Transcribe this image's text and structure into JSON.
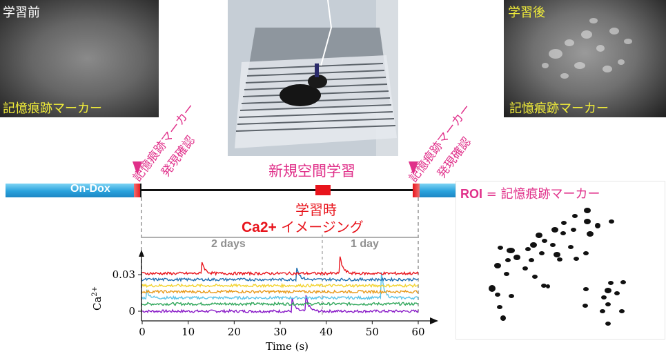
{
  "before_image": {
    "corner_label": "学習前",
    "marker_label": "記憶痕跡マーカー"
  },
  "after_image": {
    "corner_label": "学習後",
    "marker_label": "記憶痕跡マーカー"
  },
  "left_confirm": {
    "line1": "記憶痕跡マーカー",
    "line2": "発現確認"
  },
  "right_confirm": {
    "line1": "記憶痕跡マーカー",
    "line2": "発現確認"
  },
  "timeline": {
    "on_dox": "On-Dox",
    "new_space_learning": "新規空間学習",
    "learning_time": "学習時",
    "imaging_ca": "Ca2+",
    "imaging_rest": " イメージング",
    "days_before": "2 days",
    "days_after": "1 day"
  },
  "roi_panel": {
    "roi": "ROI",
    "equals": " = ",
    "marker": "記憶痕跡マーカー"
  },
  "colors": {
    "magenta": "#e0308a",
    "red": "#e8141c",
    "yellow": "#f2ee3a",
    "blue": "#2aa2dc",
    "trace_red": "#e8141c",
    "trace_blue": "#1f6fb2",
    "trace_yellow": "#f2d22c",
    "trace_orange": "#e89a1c",
    "trace_cyan": "#5cc4e8",
    "trace_green": "#2fa65a",
    "trace_purple": "#8a1cc8"
  },
  "chart_data": {
    "type": "line",
    "xlabel": "Time (s)",
    "ylabel": "Ca2+",
    "xlim": [
      0,
      60
    ],
    "xticks": [
      "0",
      "10",
      "20",
      "30",
      "40",
      "50",
      "60"
    ],
    "yticks": [
      "0",
      "0.03"
    ],
    "series": [
      {
        "color": "#8a1cc8",
        "offset": 0.0,
        "peaks": [
          [
            32.5,
            0.012
          ],
          [
            35.5,
            0.015
          ]
        ]
      },
      {
        "color": "#2fa65a",
        "offset": 0.006,
        "peaks": []
      },
      {
        "color": "#5cc4e8",
        "offset": 0.011,
        "peaks": [
          [
            1.0,
            0.006
          ],
          [
            52.0,
            0.02
          ]
        ]
      },
      {
        "color": "#e89a1c",
        "offset": 0.016,
        "peaks": []
      },
      {
        "color": "#f2d22c",
        "offset": 0.021,
        "peaks": []
      },
      {
        "color": "#1f6fb2",
        "offset": 0.026,
        "peaks": [
          [
            33.5,
            0.012
          ]
        ]
      },
      {
        "color": "#e8141c",
        "offset": 0.031,
        "peaks": [
          [
            13.0,
            0.01
          ],
          [
            43.0,
            0.014
          ]
        ]
      }
    ]
  }
}
